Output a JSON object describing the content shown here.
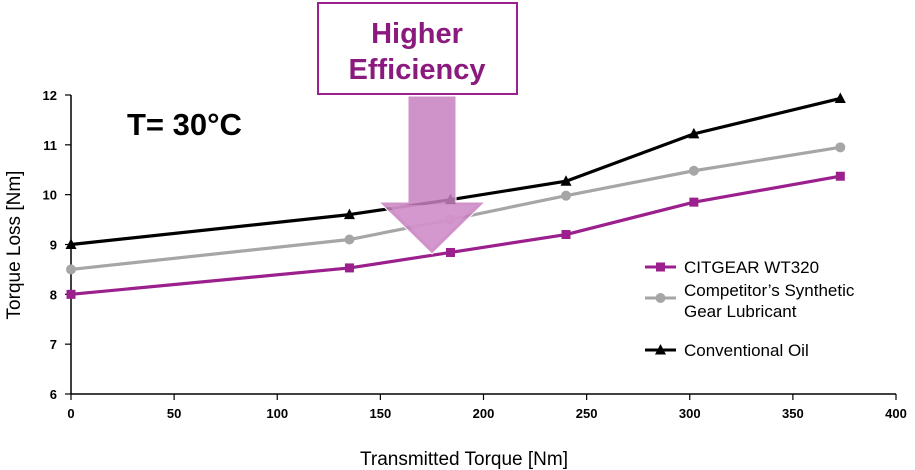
{
  "chart_data": {
    "type": "line",
    "xlabel": "Transmitted Torque [Nm]",
    "ylabel": "Torque Loss [Nm]",
    "xlim": [
      0,
      400
    ],
    "ylim": [
      6,
      12
    ],
    "x_ticks": [
      0,
      50,
      100,
      150,
      200,
      250,
      300,
      350,
      400
    ],
    "y_ticks": [
      6,
      7,
      8,
      9,
      10,
      11,
      12
    ],
    "grid": false,
    "legend_position": "right",
    "annotations": {
      "condition": "T= 30°C",
      "callout_line1": "Higher",
      "callout_line2": "Efficiency"
    },
    "series": [
      {
        "name": "CITGEAR WT320",
        "legend_lines": [
          "CITGEAR WT320"
        ],
        "color": "#9b1f8c",
        "marker": "square",
        "points": [
          [
            0,
            8.0
          ],
          [
            135,
            8.53
          ],
          [
            184,
            8.84
          ],
          [
            240,
            9.2
          ],
          [
            302,
            9.85
          ],
          [
            373,
            10.37
          ]
        ]
      },
      {
        "name": "Competitor’s Synthetic Gear Lubricant",
        "legend_lines": [
          "Competitor’s Synthetic",
          "Gear Lubricant"
        ],
        "color": "#a6a6a6",
        "marker": "circle",
        "points": [
          [
            0,
            8.5
          ],
          [
            135,
            9.1
          ],
          [
            184,
            9.5
          ],
          [
            240,
            9.98
          ],
          [
            302,
            10.48
          ],
          [
            373,
            10.95
          ]
        ]
      },
      {
        "name": "Conventional Oil",
        "legend_lines": [
          "Conventional Oil"
        ],
        "color": "#000000",
        "marker": "triangle",
        "points": [
          [
            0,
            9.0
          ],
          [
            135,
            9.6
          ],
          [
            184,
            9.9
          ],
          [
            240,
            10.27
          ],
          [
            302,
            11.22
          ],
          [
            373,
            11.93
          ]
        ]
      }
    ],
    "colors": {
      "callout_border": "#9b1f8c",
      "callout_text": "#8b1a7e",
      "arrow_fill": "#c880c0"
    }
  }
}
